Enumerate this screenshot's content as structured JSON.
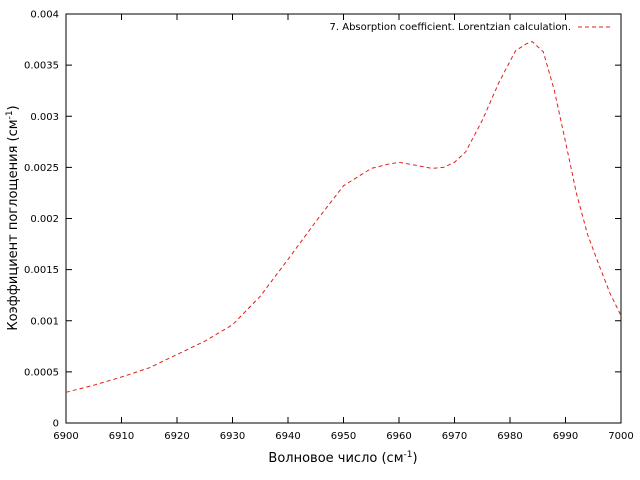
{
  "chart_data": {
    "type": "line",
    "title": "",
    "xlabel": {
      "main": "Волновое число (см",
      "sup": "-1",
      "tail": ")"
    },
    "ylabel": {
      "main": "Коэффициент поглощения (см",
      "sup": "-1",
      "tail": ")"
    },
    "xlim": [
      6900,
      7000
    ],
    "ylim": [
      0,
      0.004
    ],
    "xticks": [
      6900,
      6910,
      6920,
      6930,
      6940,
      6950,
      6960,
      6970,
      6980,
      6990,
      7000
    ],
    "xtick_labels": [
      "6900",
      "6910",
      "6920",
      "6930",
      "6940",
      "6950",
      "6960",
      "6970",
      "6980",
      "6990",
      "7000"
    ],
    "yticks": [
      0,
      0.0005,
      0.001,
      0.0015,
      0.002,
      0.0025,
      0.003,
      0.0035,
      0.004
    ],
    "ytick_labels": [
      "0",
      "0.0005",
      "0.001",
      "0.0015",
      "0.002",
      "0.0025",
      "0.003",
      "0.0035",
      "0.004"
    ],
    "grid": false,
    "legend_position": "top-right",
    "series": [
      {
        "name": "7. Absorption coefficient. Lorentzian calculation.",
        "color": "#e0201b",
        "line_style": "dashed",
        "x": [
          6900,
          6905,
          6910,
          6915,
          6920,
          6925,
          6930,
          6935,
          6940,
          6945,
          6950,
          6955,
          6958,
          6960,
          6963,
          6966,
          6968,
          6970,
          6972,
          6975,
          6978,
          6981,
          6983,
          6984,
          6986,
          6988,
          6990,
          6992,
          6994,
          6996,
          6998,
          7000
        ],
        "y": [
          0.0003,
          0.00037,
          0.00045,
          0.00054,
          0.00067,
          0.0008,
          0.00096,
          0.00124,
          0.0016,
          0.00197,
          0.00232,
          0.00249,
          0.00253,
          0.00255,
          0.00252,
          0.00249,
          0.0025,
          0.00255,
          0.00265,
          0.00296,
          0.00333,
          0.00364,
          0.00371,
          0.00373,
          0.00363,
          0.00325,
          0.00275,
          0.00224,
          0.00184,
          0.00155,
          0.00127,
          0.00105
        ]
      }
    ]
  }
}
